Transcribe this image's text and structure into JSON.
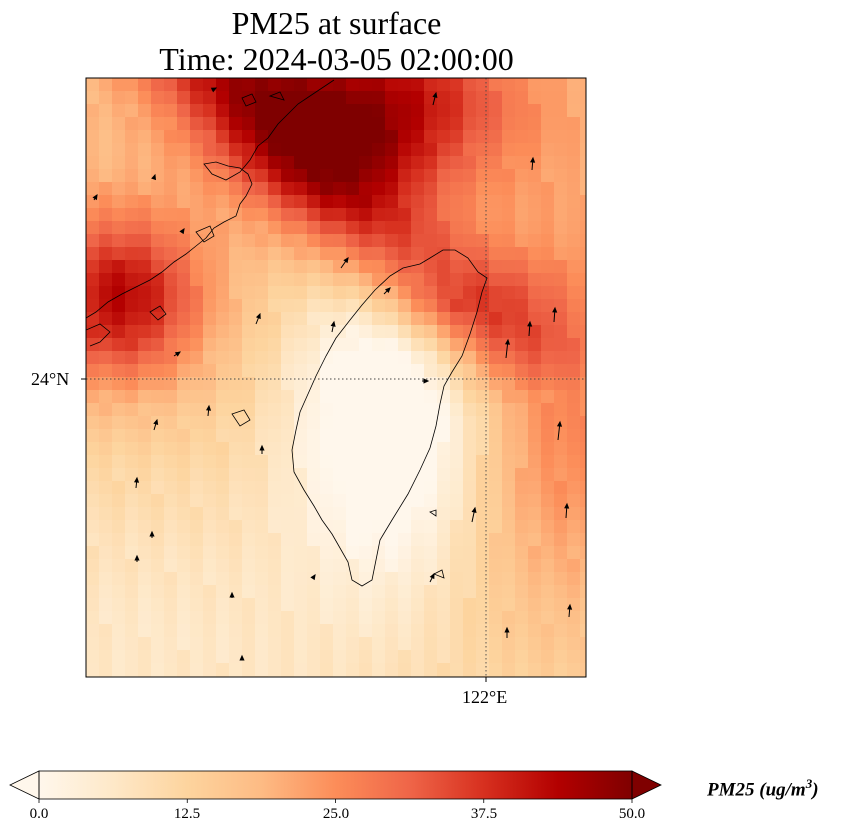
{
  "title_line1": "PM25 at surface",
  "title_line2": "Time: 2024-03-05 02:00:00",
  "lat_label": "24°N",
  "lon_label": "122°E",
  "colorbar": {
    "label_main": "PM25 (ug/m",
    "label_sup": "3",
    "label_end": ")",
    "ticks": [
      "0.0",
      "12.5",
      "25.0",
      "37.5",
      "50.0"
    ],
    "min": 0,
    "max": 50,
    "colormap": "OrRd",
    "extend": "both"
  },
  "map": {
    "gridlines": "dotted",
    "features": [
      "coastline",
      "wind-vectors",
      "pm25-field"
    ],
    "colors": {
      "low": "#fff7ec",
      "high": "#7f0000",
      "coastline": "#000000"
    }
  }
}
